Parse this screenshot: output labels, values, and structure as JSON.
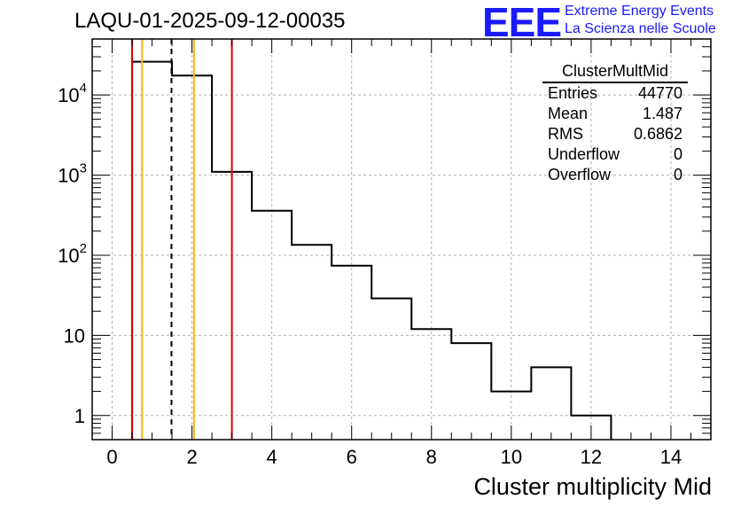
{
  "title": "LAQU-01-2025-09-12-00035",
  "logo": {
    "text": "EEE",
    "line1": "Extreme Energy Events",
    "line2": "La Scienza nelle Scuole",
    "color": "#1a1aff"
  },
  "chart_data": {
    "type": "histogram",
    "x_label": "Cluster multiplicity Mid",
    "x_range": [
      -0.5,
      15.0
    ],
    "y_scale": "log",
    "y_range": [
      0.5,
      50000
    ],
    "grid": true,
    "x_ticks": [
      "0",
      "2",
      "4",
      "6",
      "8",
      "10",
      "12",
      "14"
    ],
    "y_ticks": [
      {
        "base": "1",
        "exp": ""
      },
      {
        "base": "10",
        "exp": ""
      },
      {
        "base": "10",
        "exp": "2"
      },
      {
        "base": "10",
        "exp": "3"
      },
      {
        "base": "10",
        "exp": "4"
      }
    ],
    "bins": [
      {
        "low": 0.5,
        "high": 1.5,
        "count": 26000
      },
      {
        "low": 1.5,
        "high": 2.5,
        "count": 17500
      },
      {
        "low": 2.5,
        "high": 3.5,
        "count": 1100
      },
      {
        "low": 3.5,
        "high": 4.5,
        "count": 360
      },
      {
        "low": 4.5,
        "high": 5.5,
        "count": 135
      },
      {
        "low": 5.5,
        "high": 6.5,
        "count": 74
      },
      {
        "low": 6.5,
        "high": 7.5,
        "count": 29
      },
      {
        "low": 7.5,
        "high": 8.5,
        "count": 12
      },
      {
        "low": 8.5,
        "high": 9.5,
        "count": 8
      },
      {
        "low": 9.5,
        "high": 10.5,
        "count": 2
      },
      {
        "low": 10.5,
        "high": 11.5,
        "count": 4
      },
      {
        "low": 11.5,
        "high": 12.5,
        "count": 1
      }
    ],
    "vertical_lines": [
      {
        "x": 0.5,
        "color": "#e00000",
        "style": "solid"
      },
      {
        "x": 0.75,
        "color": "#ffb400",
        "style": "solid"
      },
      {
        "x": 1.487,
        "color": "#000000",
        "style": "dashed"
      },
      {
        "x": 2.05,
        "color": "#ffb400",
        "style": "solid"
      },
      {
        "x": 3.0,
        "color": "#e00000",
        "style": "solid"
      }
    ],
    "stats": {
      "name": "ClusterMultMid",
      "rows": [
        {
          "label": "Entries",
          "value": "44770"
        },
        {
          "label": "Mean",
          "value": "1.487"
        },
        {
          "label": "RMS",
          "value": "0.6862"
        },
        {
          "label": "Underflow",
          "value": "0"
        },
        {
          "label": "Overflow",
          "value": "0"
        }
      ]
    }
  }
}
